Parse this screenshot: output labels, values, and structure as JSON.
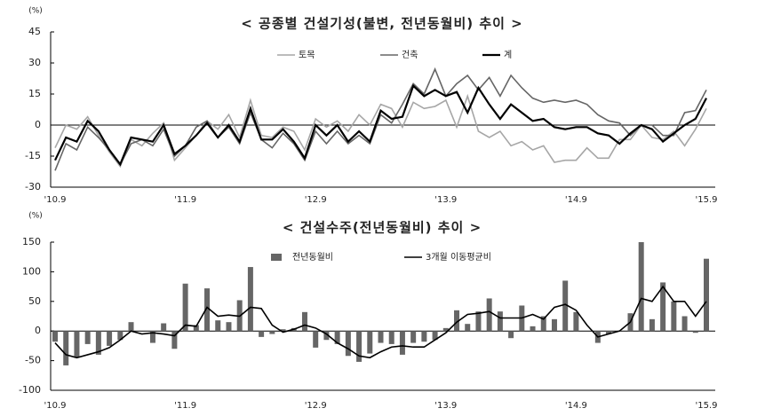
{
  "chart_data": [
    {
      "type": "line",
      "title": "< 공종별 건설기성(불변, 전년동월비) 추이 >",
      "unit": "(%)",
      "categories": [
        "'10.9",
        null,
        null,
        null,
        null,
        null,
        null,
        null,
        null,
        null,
        null,
        null,
        "'11.9",
        null,
        null,
        null,
        null,
        null,
        null,
        null,
        null,
        null,
        null,
        null,
        "'12.9",
        null,
        null,
        null,
        null,
        null,
        null,
        null,
        null,
        null,
        null,
        null,
        "'13.9",
        null,
        null,
        null,
        null,
        null,
        null,
        null,
        null,
        null,
        null,
        null,
        "'14.9",
        null,
        null,
        null,
        null,
        null,
        null,
        null,
        null,
        null,
        null,
        null,
        "'15.9"
      ],
      "series": [
        {
          "name": "토목",
          "color": "#a6a6a6",
          "values": [
            -11,
            0,
            -2,
            4,
            -5,
            -13,
            -20,
            -7,
            -10,
            -4,
            1,
            -17,
            -11,
            -5,
            2,
            -2,
            5,
            -6,
            12,
            -5,
            -6,
            -1,
            -3,
            -12,
            3,
            -1,
            2,
            -3,
            5,
            0,
            10,
            8,
            -1,
            11,
            8,
            9,
            12,
            -1,
            14,
            -3,
            -6,
            -3,
            -10,
            -8,
            -12,
            -10,
            -18,
            -17,
            -17,
            -11,
            -16,
            -16,
            -7,
            -7,
            0,
            -6,
            -7,
            -3,
            -10,
            -2,
            8
          ]
        },
        {
          "name": "건축",
          "color": "#666666",
          "values": [
            -22,
            -9,
            -12,
            -1,
            -6,
            -12,
            -19,
            -9,
            -7,
            -10,
            -2,
            -15,
            -10,
            -1,
            2,
            -6,
            -1,
            -9,
            6,
            -7,
            -11,
            -4,
            -9,
            -17,
            -3,
            -9,
            -3,
            -9,
            -5,
            -9,
            5,
            1,
            10,
            20,
            15,
            27,
            14,
            20,
            24,
            17,
            23,
            14,
            24,
            18,
            13,
            11,
            12,
            11,
            12,
            10,
            5,
            2,
            1,
            -5,
            0,
            0,
            -5,
            -5,
            6,
            7,
            17
          ]
        },
        {
          "name": "계",
          "color": "#000000",
          "values": [
            -17,
            -6,
            -8,
            2,
            -3,
            -12,
            -19,
            -6,
            -7,
            -8,
            0,
            -14,
            -10,
            -5,
            1,
            -6,
            0,
            -8,
            8,
            -7,
            -7,
            -2,
            -8,
            -16,
            0,
            -5,
            0,
            -8,
            -3,
            -8,
            7,
            3,
            4,
            19,
            14,
            17,
            14,
            16,
            6,
            18,
            10,
            3,
            10,
            6,
            2,
            3,
            -1,
            -2,
            -1,
            -1,
            -4,
            -5,
            -9,
            -4,
            0,
            -2,
            -8,
            -4,
            0,
            3,
            13
          ]
        }
      ],
      "ylim": [
        -30,
        45
      ],
      "yticks": [
        -30,
        -15,
        0,
        15,
        30,
        45
      ]
    },
    {
      "type": "bar",
      "title": "< 건설수주(전년동월비) 추이 >",
      "unit": "(%)",
      "categories": [
        "'10.9",
        null,
        null,
        null,
        null,
        null,
        null,
        null,
        null,
        null,
        null,
        null,
        "'11.9",
        null,
        null,
        null,
        null,
        null,
        null,
        null,
        null,
        null,
        null,
        null,
        "'12.9",
        null,
        null,
        null,
        null,
        null,
        null,
        null,
        null,
        null,
        null,
        null,
        "'13.9",
        null,
        null,
        null,
        null,
        null,
        null,
        null,
        null,
        null,
        null,
        null,
        "'14.9",
        null,
        null,
        null,
        null,
        null,
        null,
        null,
        null,
        null,
        null,
        null,
        "'15.9"
      ],
      "series": [
        {
          "name": "전년동월비",
          "color": "#666666",
          "values": [
            -18,
            -58,
            -45,
            -22,
            -40,
            -25,
            -15,
            15,
            0,
            -20,
            13,
            -30,
            80,
            10,
            72,
            18,
            15,
            52,
            108,
            -10,
            -5,
            3,
            5,
            32,
            -28,
            -15,
            -22,
            -42,
            -52,
            -38,
            -20,
            -22,
            -40,
            -20,
            -18,
            -15,
            5,
            35,
            12,
            33,
            55,
            33,
            -12,
            43,
            8,
            25,
            20,
            85,
            32,
            0,
            -20,
            -5,
            0,
            30,
            150,
            20,
            82,
            50,
            25,
            -3,
            122
          ]
        },
        {
          "name": "3개월 이동평균비",
          "color": "#000000",
          "type": "line",
          "values": [
            -20,
            -40,
            -45,
            -40,
            -35,
            -28,
            -15,
            0,
            -5,
            -3,
            -5,
            -8,
            10,
            8,
            40,
            25,
            27,
            25,
            40,
            38,
            10,
            -2,
            3,
            10,
            5,
            -5,
            -20,
            -30,
            -42,
            -45,
            -35,
            -27,
            -25,
            -27,
            -27,
            -15,
            -3,
            15,
            28,
            30,
            33,
            22,
            22,
            22,
            28,
            20,
            40,
            45,
            35,
            10,
            -10,
            -5,
            0,
            15,
            55,
            50,
            75,
            50,
            50,
            25,
            50
          ]
        }
      ],
      "ylim": [
        -100,
        150
      ],
      "yticks": [
        -100,
        -50,
        0,
        50,
        100,
        150
      ]
    }
  ]
}
